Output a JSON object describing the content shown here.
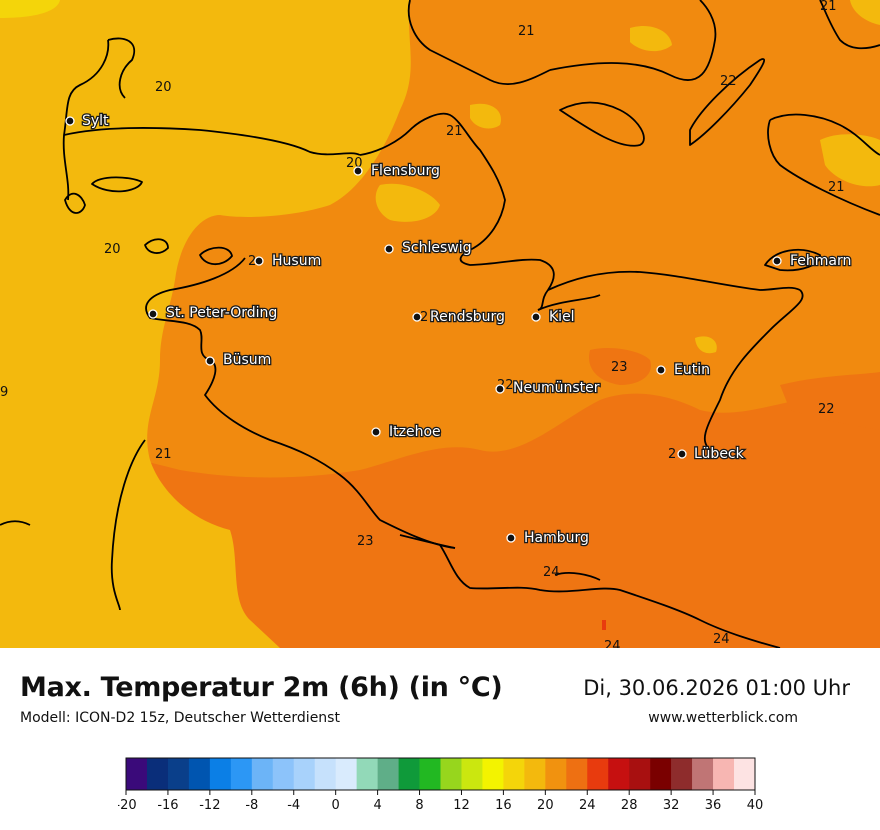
{
  "map": {
    "cities": [
      {
        "name": "Sylt"
      },
      {
        "name": "Flensburg"
      },
      {
        "name": "Schleswig"
      },
      {
        "name": "Husum"
      },
      {
        "name": "Fehmarn"
      },
      {
        "name": "St. Peter-Ording"
      },
      {
        "name": "Rendsburg"
      },
      {
        "name": "Kiel"
      },
      {
        "name": "Büsum"
      },
      {
        "name": "Eutin"
      },
      {
        "name": "Neumünster"
      },
      {
        "name": "Itzehoe"
      },
      {
        "name": "Lübeck"
      },
      {
        "name": "Hamburg"
      }
    ],
    "contour_labels": [
      "21",
      "21",
      "20",
      "22",
      "21",
      "20",
      "21",
      "20",
      "2",
      "9",
      "22",
      "2",
      "23",
      "22",
      "21",
      "2",
      "23",
      "24",
      "24",
      "24"
    ]
  },
  "title": "Max. Temperatur 2m (6h) (in °C)",
  "model": "Modell: ICON-D2 15z, Deutscher Wetterdienst",
  "datetime": "Di, 30.06.2026 01:00 Uhr",
  "website": "www.wetterblick.com",
  "legend": {
    "tick_labels": [
      "-20",
      "-16",
      "-12",
      "-8",
      "-4",
      "0",
      "4",
      "8",
      "12",
      "16",
      "20",
      "24",
      "28",
      "32",
      "36",
      "40"
    ],
    "colors": [
      "#3a0a7a",
      "#0a2e7a",
      "#0a3f8a",
      "#0055b0",
      "#0b7fe6",
      "#2c97f5",
      "#6cb4f7",
      "#8cc3fa",
      "#a8d2fb",
      "#c6e1fc",
      "#d9ebfd",
      "#92d9b8",
      "#5fae88",
      "#0f9a3a",
      "#22b822",
      "#97d61d",
      "#cbe70f",
      "#f3f300",
      "#f4d50a",
      "#f3b90d",
      "#f1920f",
      "#ee7012",
      "#e83b0e",
      "#c61010",
      "#a81010",
      "#7a0000",
      "#8e2c2c",
      "#c07575",
      "#f7b6b2",
      "#fde3e3"
    ],
    "series_name": ""
  }
}
